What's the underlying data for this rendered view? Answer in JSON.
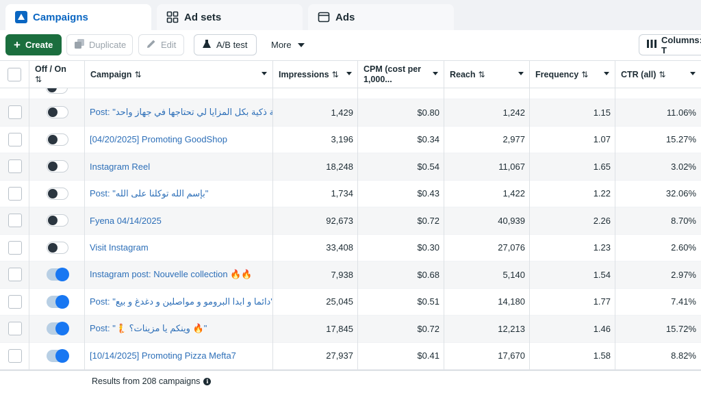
{
  "tabs": [
    {
      "label": "Campaigns",
      "icon": "campaign-flag-icon",
      "active": true
    },
    {
      "label": "Ad sets",
      "icon": "grid-icon",
      "active": false
    },
    {
      "label": "Ads",
      "icon": "ad-card-icon",
      "active": false
    }
  ],
  "toolbar": {
    "create_label": "Create",
    "duplicate_label": "Duplicate",
    "edit_label": "Edit",
    "abtest_label": "A/B test",
    "more_label": "More",
    "columns_label": "Columns: T"
  },
  "columns": {
    "offon": "Off / On",
    "campaign": "Campaign",
    "impressions": "Impressions",
    "cpm_line1": "CPM (cost per",
    "cpm_line2": "1,000...",
    "reach": "Reach",
    "frequency": "Frequency",
    "ctr": "CTR (all)"
  },
  "rows": [
    {
      "name": "Post: \"حة ذكية بكل المزايا لي تحتاجها في جهاز واحد",
      "on": false,
      "impressions": "1,429",
      "cpm": "$0.80",
      "reach": "1,242",
      "frequency": "1.15",
      "ctr": "11.06%"
    },
    {
      "name": "[04/20/2025] Promoting GoodShop",
      "on": false,
      "impressions": "3,196",
      "cpm": "$0.34",
      "reach": "2,977",
      "frequency": "1.07",
      "ctr": "15.27%"
    },
    {
      "name": "Instagram Reel",
      "on": false,
      "impressions": "18,248",
      "cpm": "$0.54",
      "reach": "11,067",
      "frequency": "1.65",
      "ctr": "3.02%"
    },
    {
      "name": "Post: \"بإسم الله توكلنا على الله\"",
      "on": false,
      "impressions": "1,734",
      "cpm": "$0.43",
      "reach": "1,422",
      "frequency": "1.22",
      "ctr": "32.06%"
    },
    {
      "name": "Fyena 04/14/2025",
      "on": false,
      "impressions": "92,673",
      "cpm": "$0.72",
      "reach": "40,939",
      "frequency": "2.26",
      "ctr": "8.70%"
    },
    {
      "name": "Visit Instagram",
      "on": false,
      "impressions": "33,408",
      "cpm": "$0.30",
      "reach": "27,076",
      "frequency": "1.23",
      "ctr": "2.60%"
    },
    {
      "name": "Instagram post: Nouvelle collection 🔥🔥",
      "on": true,
      "impressions": "7,938",
      "cpm": "$0.68",
      "reach": "5,140",
      "frequency": "1.54",
      "ctr": "2.97%"
    },
    {
      "name": "Post: \"دائما و ابدا البرومو و مواصلين و دغدغ و بيع\"",
      "on": true,
      "impressions": "25,045",
      "cpm": "$0.51",
      "reach": "14,180",
      "frequency": "1.77",
      "ctr": "7.41%"
    },
    {
      "name": "Post: \"🧜 وينكم يا مزينات؟ 🔥\"",
      "on": true,
      "impressions": "17,845",
      "cpm": "$0.72",
      "reach": "12,213",
      "frequency": "1.46",
      "ctr": "15.72%"
    },
    {
      "name": "[10/14/2025] Promoting Pizza Mefta7",
      "on": true,
      "impressions": "27,937",
      "cpm": "$0.41",
      "reach": "17,670",
      "frequency": "1.58",
      "ctr": "8.82%"
    }
  ],
  "footer": {
    "results": "Results from 208 campaigns"
  },
  "colors": {
    "accent": "#0a66c2",
    "create": "#1b6e3e",
    "toggle_on": "#1877f2",
    "link": "#2d6fb8"
  }
}
